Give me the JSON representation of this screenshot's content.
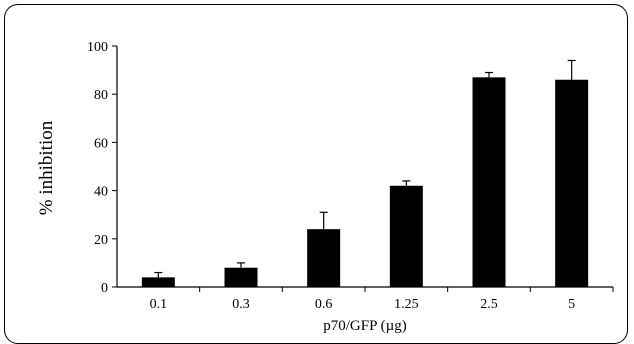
{
  "chart_data": {
    "type": "bar",
    "categories": [
      "0.1",
      "0.3",
      "0.6",
      "1.25",
      "2.5",
      "5"
    ],
    "values": [
      4,
      8,
      24,
      42,
      87,
      86
    ],
    "errors": [
      2,
      2,
      7,
      2,
      2,
      8
    ],
    "xlabel": "p70/GFP (µg)",
    "ylabel": "% inhibition",
    "ylim": [
      0,
      100
    ],
    "yticks": [
      "0",
      "20",
      "40",
      "60",
      "80",
      "100"
    ],
    "grid": false,
    "bar_color": "#000000"
  }
}
